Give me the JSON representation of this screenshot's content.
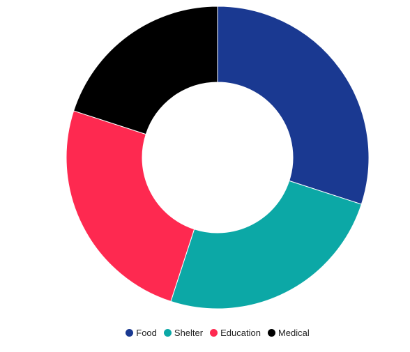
{
  "chart_data": {
    "type": "pie",
    "variant": "donut",
    "title": "",
    "categories": [
      "Food",
      "Shelter",
      "Education",
      "Medical"
    ],
    "values": [
      30,
      25,
      25,
      20
    ],
    "colors": [
      "#1a3991",
      "#0ca8a6",
      "#fe2950",
      "#000000"
    ],
    "legend": {
      "placement": "bottom-center"
    }
  }
}
